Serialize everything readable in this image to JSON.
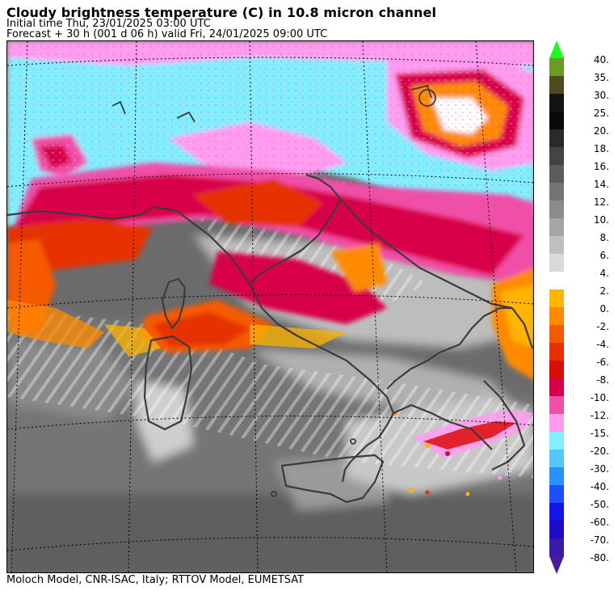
{
  "header": {
    "title": "Cloudy brightness temperature (C) in   10.8 micron channel",
    "initial_time": "Initial time  Thu, 23/01/2025  03:00 UTC",
    "forecast": "Forecast  +  30 h  (001 d 06 h)  valid Fri, 24/01/2025 09:00 UTC"
  },
  "footer": {
    "credit": "Moloch Model, CNR-ISAC, Italy; RTTOV Model, EUMETSAT"
  },
  "colorbar": {
    "upper": [
      {
        "label": "40.",
        "color": "#1aff1a"
      },
      {
        "label": "35.",
        "color": "#6b9a26"
      },
      {
        "label": "30.",
        "color": "#4f4a1f"
      },
      {
        "label": "25.",
        "color": "#141414"
      },
      {
        "label": "20.",
        "color": "#0a0a0a"
      },
      {
        "label": "18.",
        "color": "#2a2a2a"
      },
      {
        "label": "16.",
        "color": "#444444"
      },
      {
        "label": "14.",
        "color": "#5c5c5c"
      },
      {
        "label": "12.",
        "color": "#747474"
      },
      {
        "label": "10.",
        "color": "#8c8c8c"
      },
      {
        "label": "8.",
        "color": "#a5a5a5"
      },
      {
        "label": "6.",
        "color": "#bfbfbf"
      },
      {
        "label": "4.",
        "color": "#d9d9d9"
      }
    ],
    "lower": [
      {
        "label": "2.",
        "color": "#ffb400"
      },
      {
        "label": "0.",
        "color": "#ff8a00"
      },
      {
        "label": "-2.",
        "color": "#f55a00"
      },
      {
        "label": "-4.",
        "color": "#e63000"
      },
      {
        "label": "-6.",
        "color": "#dd0a0a"
      },
      {
        "label": "-8.",
        "color": "#d8004a"
      },
      {
        "label": "-10.",
        "color": "#f050a8"
      },
      {
        "label": "-12.",
        "color": "#ff9cf0"
      },
      {
        "label": "-15.",
        "color": "#80f0ff"
      },
      {
        "label": "-20.",
        "color": "#50c8ff"
      },
      {
        "label": "-30.",
        "color": "#2a90ff"
      },
      {
        "label": "-40.",
        "color": "#1a50ff"
      },
      {
        "label": "-50.",
        "color": "#1414e6"
      },
      {
        "label": "-60.",
        "color": "#1e0ac8"
      },
      {
        "label": "-70.",
        "color": "#3a1aa8"
      },
      {
        "label": "-80.",
        "color": "#4a1a9a"
      }
    ]
  }
}
